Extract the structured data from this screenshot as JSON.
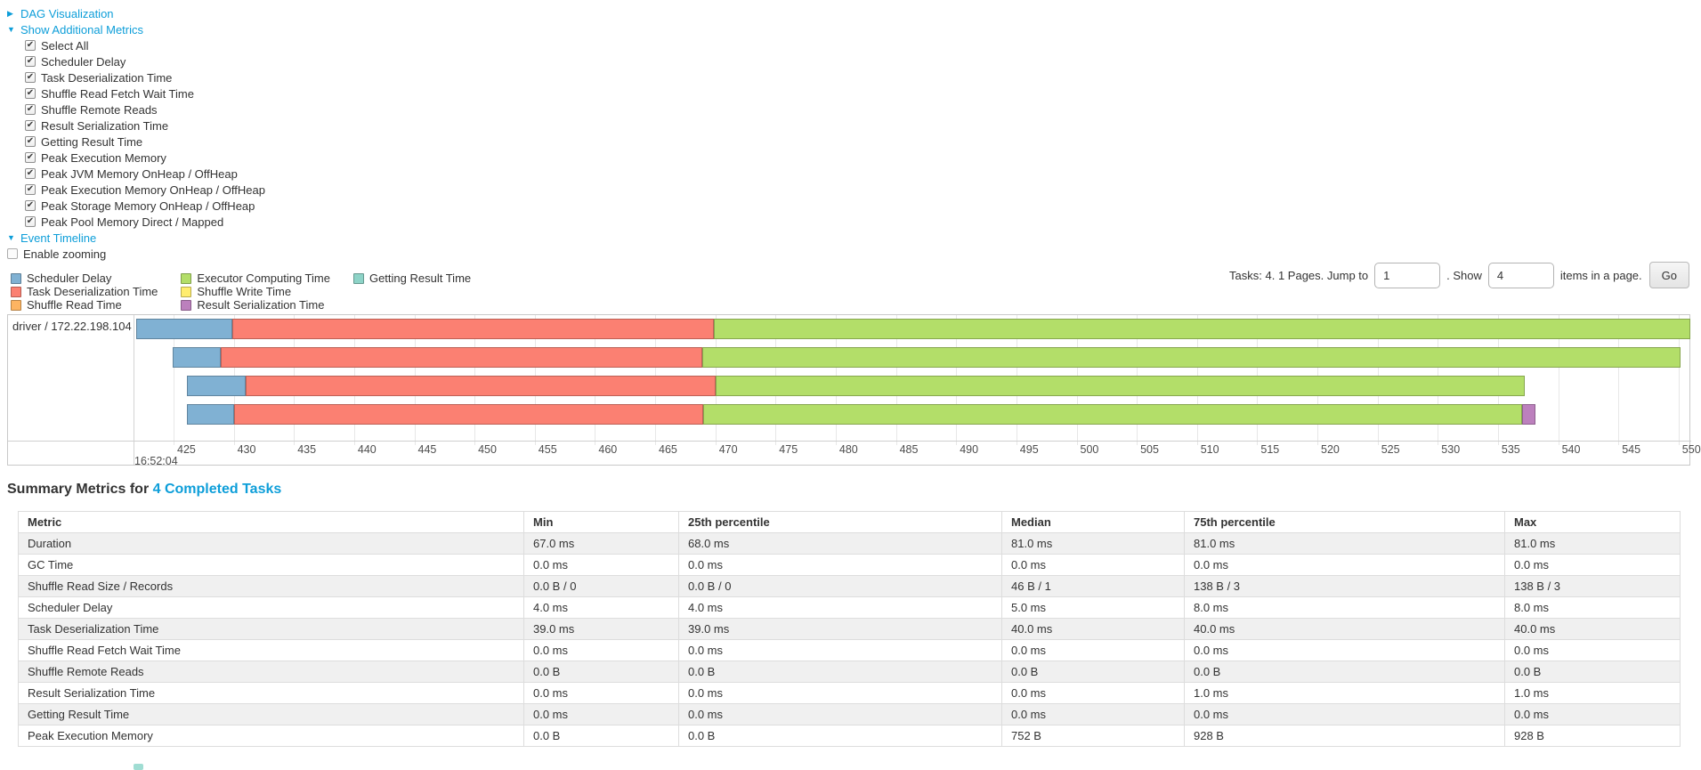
{
  "colors": {
    "link": "#0d9ed9",
    "scheduler_delay": "#80b1d3",
    "task_deserialization": "#fb8072",
    "shuffle_read": "#fdb462",
    "executor_computing": "#b3de69",
    "shuffle_write": "#ffed6f",
    "result_serialization": "#bc80bd",
    "getting_result": "#8dd3c7"
  },
  "icons": {
    "collapsed": "▶",
    "expanded": "▼",
    "check": "✔"
  },
  "controls": {
    "dag": {
      "label": "DAG Visualization",
      "expanded": false
    },
    "metrics": {
      "label": "Show Additional Metrics",
      "expanded": true,
      "items": [
        {
          "label": "Select All",
          "checked": true
        },
        {
          "label": "Scheduler Delay",
          "checked": true
        },
        {
          "label": "Task Deserialization Time",
          "checked": true
        },
        {
          "label": "Shuffle Read Fetch Wait Time",
          "checked": true
        },
        {
          "label": "Shuffle Remote Reads",
          "checked": true
        },
        {
          "label": "Result Serialization Time",
          "checked": true
        },
        {
          "label": "Getting Result Time",
          "checked": true
        },
        {
          "label": "Peak Execution Memory",
          "checked": true
        },
        {
          "label": "Peak JVM Memory OnHeap / OffHeap",
          "checked": true
        },
        {
          "label": "Peak Execution Memory OnHeap / OffHeap",
          "checked": true
        },
        {
          "label": "Peak Storage Memory OnHeap / OffHeap",
          "checked": true
        },
        {
          "label": "Peak Pool Memory Direct / Mapped",
          "checked": true
        }
      ]
    },
    "event_timeline": {
      "label": "Event Timeline",
      "expanded": true
    },
    "enable_zooming": {
      "label": "Enable zooming",
      "checked": false
    }
  },
  "legend": {
    "items": [
      {
        "label": "Scheduler Delay",
        "color_key": "scheduler_delay"
      },
      {
        "label": "Task Deserialization Time",
        "color_key": "task_deserialization"
      },
      {
        "label": "Shuffle Read Time",
        "color_key": "shuffle_read"
      },
      {
        "label": "Executor Computing Time",
        "color_key": "executor_computing"
      },
      {
        "label": "Shuffle Write Time",
        "color_key": "shuffle_write"
      },
      {
        "label": "Result Serialization Time",
        "color_key": "result_serialization"
      },
      {
        "label": "Getting Result Time",
        "color_key": "getting_result"
      }
    ]
  },
  "pagination": {
    "text_before": "Tasks: 4. 1 Pages. Jump to",
    "jump_value": "1",
    "text_mid": ". Show",
    "show_value": "4",
    "text_after": "items in a page.",
    "go_label": "Go"
  },
  "chart_data": {
    "type": "timeline",
    "title": "Event Timeline",
    "group_label": "driver / 172.22.198.104",
    "x_axis": {
      "tick_start": 425,
      "tick_end": 550,
      "tick_step": 5,
      "time_label": "16:52:04",
      "view_min": 421.75,
      "view_max": 550.9
    },
    "tasks": [
      {
        "segments": [
          {
            "type": "scheduler_delay",
            "start": 421.9,
            "end": 429.9
          },
          {
            "type": "task_deserialization",
            "start": 429.9,
            "end": 469.9
          },
          {
            "type": "executor_computing",
            "start": 469.9,
            "end": 551.0
          }
        ]
      },
      {
        "segments": [
          {
            "type": "scheduler_delay",
            "start": 424.9,
            "end": 428.9
          },
          {
            "type": "task_deserialization",
            "start": 428.9,
            "end": 468.9
          },
          {
            "type": "executor_computing",
            "start": 468.9,
            "end": 550.2
          }
        ]
      },
      {
        "segments": [
          {
            "type": "scheduler_delay",
            "start": 426.1,
            "end": 431.0
          },
          {
            "type": "task_deserialization",
            "start": 431.0,
            "end": 470.0
          },
          {
            "type": "executor_computing",
            "start": 470.0,
            "end": 537.2
          }
        ]
      },
      {
        "segments": [
          {
            "type": "scheduler_delay",
            "start": 426.1,
            "end": 430.0
          },
          {
            "type": "task_deserialization",
            "start": 430.0,
            "end": 469.0
          },
          {
            "type": "executor_computing",
            "start": 469.0,
            "end": 537.0
          },
          {
            "type": "result_serialization",
            "start": 537.0,
            "end": 538.1
          }
        ]
      }
    ]
  },
  "summary": {
    "title_prefix": "Summary Metrics for",
    "title_link": "4 Completed Tasks",
    "table": {
      "headers": [
        "Metric",
        "Min",
        "25th percentile",
        "Median",
        "75th percentile",
        "Max"
      ],
      "rows": [
        {
          "metric": "Duration",
          "values": [
            "67.0 ms",
            "68.0 ms",
            "81.0 ms",
            "81.0 ms",
            "81.0 ms"
          ]
        },
        {
          "metric": "GC Time",
          "values": [
            "0.0 ms",
            "0.0 ms",
            "0.0 ms",
            "0.0 ms",
            "0.0 ms"
          ]
        },
        {
          "metric": "Shuffle Read Size / Records",
          "values": [
            "0.0 B / 0",
            "0.0 B / 0",
            "46 B / 1",
            "138 B / 3",
            "138 B / 3"
          ]
        },
        {
          "metric": "Scheduler Delay",
          "values": [
            "4.0 ms",
            "4.0 ms",
            "5.0 ms",
            "8.0 ms",
            "8.0 ms"
          ]
        },
        {
          "metric": "Task Deserialization Time",
          "values": [
            "39.0 ms",
            "39.0 ms",
            "40.0 ms",
            "40.0 ms",
            "40.0 ms"
          ]
        },
        {
          "metric": "Shuffle Read Fetch Wait Time",
          "values": [
            "0.0 ms",
            "0.0 ms",
            "0.0 ms",
            "0.0 ms",
            "0.0 ms"
          ]
        },
        {
          "metric": "Shuffle Remote Reads",
          "values": [
            "0.0 B",
            "0.0 B",
            "0.0 B",
            "0.0 B",
            "0.0 B"
          ]
        },
        {
          "metric": "Result Serialization Time",
          "values": [
            "0.0 ms",
            "0.0 ms",
            "0.0 ms",
            "1.0 ms",
            "1.0 ms"
          ]
        },
        {
          "metric": "Getting Result Time",
          "values": [
            "0.0 ms",
            "0.0 ms",
            "0.0 ms",
            "0.0 ms",
            "0.0 ms"
          ]
        },
        {
          "metric": "Peak Execution Memory",
          "values": [
            "0.0 B",
            "0.0 B",
            "752 B",
            "928 B",
            "928 B"
          ]
        }
      ]
    }
  }
}
